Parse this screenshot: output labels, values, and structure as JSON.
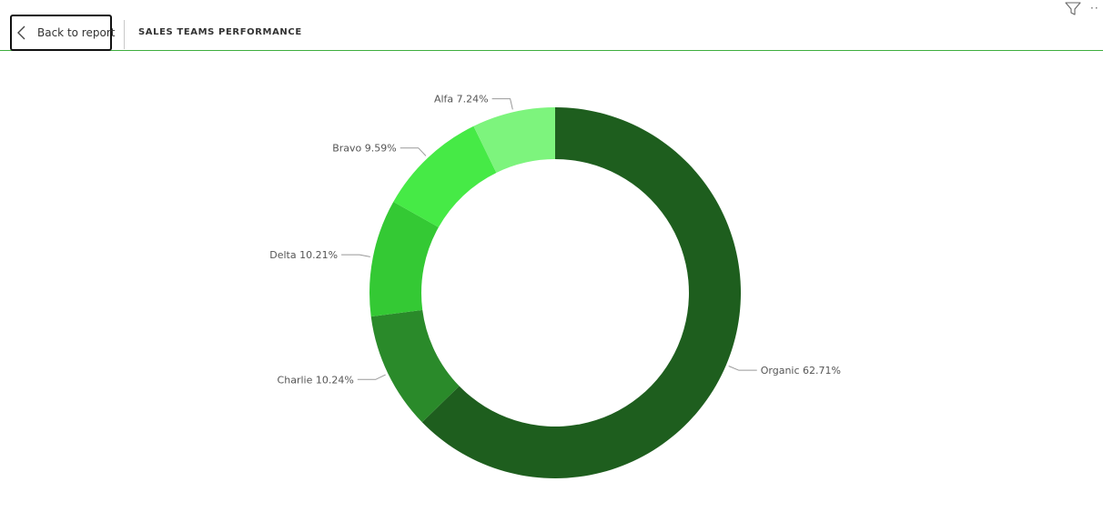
{
  "header": {
    "back_label": "Back to report",
    "page_title": "SALES TEAMS PERFORMANCE"
  },
  "icons": {
    "back": "chevron-left-icon",
    "filter": "filter-icon",
    "more": "more-options-icon"
  },
  "colors": {
    "accent_line": "#3fae3f"
  },
  "chart_data": {
    "type": "pie",
    "variant": "donut",
    "title": "",
    "slices": [
      {
        "label": "Organic",
        "percent": "62.71%",
        "value": 62.71,
        "color": "#1e5e1e"
      },
      {
        "label": "Charlie",
        "percent": "10.24%",
        "value": 10.24,
        "color": "#2a8a2a"
      },
      {
        "label": "Delta",
        "percent": "10.21%",
        "value": 10.21,
        "color": "#34c934"
      },
      {
        "label": "Bravo",
        "percent": "9.59%",
        "value": 9.59,
        "color": "#46ea46"
      },
      {
        "label": "Alfa",
        "percent": "7.24%",
        "value": 7.24,
        "color": "#7df47d"
      }
    ],
    "legend": "none",
    "data_labels": "outside"
  }
}
